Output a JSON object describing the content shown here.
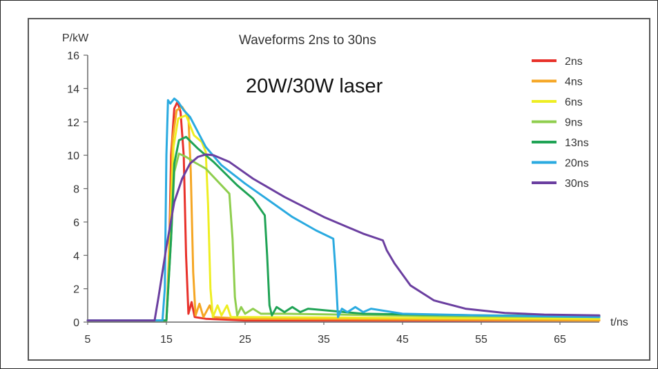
{
  "chart_data": {
    "type": "line",
    "title": "Waveforms 2ns to 30ns",
    "subtitle": "20W/30W laser",
    "xlabel": "t/ns",
    "ylabel": "P/kW",
    "xlim": [
      5,
      70
    ],
    "ylim": [
      0,
      16
    ],
    "x_ticks": [
      5,
      15,
      25,
      35,
      45,
      55,
      65
    ],
    "y_ticks": [
      0,
      2,
      4,
      6,
      8,
      10,
      12,
      14,
      16
    ],
    "grid": false,
    "legend_position": "top-right",
    "series": [
      {
        "name": "2ns",
        "color": "#e8312a",
        "points": [
          [
            5,
            0.1
          ],
          [
            15,
            0.1
          ],
          [
            15.3,
            3
          ],
          [
            15.6,
            10
          ],
          [
            16,
            12.8
          ],
          [
            16.4,
            13.2
          ],
          [
            16.8,
            12.6
          ],
          [
            17.2,
            10
          ],
          [
            17.5,
            4
          ],
          [
            17.8,
            0.5
          ],
          [
            18.2,
            1.2
          ],
          [
            18.6,
            0.3
          ],
          [
            20,
            0.2
          ],
          [
            25,
            0.1
          ],
          [
            70,
            0.1
          ]
        ]
      },
      {
        "name": "4ns",
        "color": "#f5a623",
        "points": [
          [
            5,
            0.1
          ],
          [
            15,
            0.1
          ],
          [
            15.4,
            5
          ],
          [
            15.8,
            11
          ],
          [
            16.3,
            12.7
          ],
          [
            17,
            12.9
          ],
          [
            17.8,
            12.3
          ],
          [
            18.1,
            9
          ],
          [
            18.4,
            3
          ],
          [
            18.7,
            0.4
          ],
          [
            19.2,
            1.1
          ],
          [
            19.7,
            0.3
          ],
          [
            20.5,
            1.0
          ],
          [
            21,
            0.3
          ],
          [
            25,
            0.2
          ],
          [
            70,
            0.1
          ]
        ]
      },
      {
        "name": "6ns",
        "color": "#eeee22",
        "points": [
          [
            5,
            0.1
          ],
          [
            15,
            0.1
          ],
          [
            15.5,
            5
          ],
          [
            15.9,
            10.5
          ],
          [
            16.5,
            12.2
          ],
          [
            17.5,
            12.4
          ],
          [
            18.5,
            11.2
          ],
          [
            19.5,
            10.8
          ],
          [
            20,
            10.2
          ],
          [
            20.3,
            7
          ],
          [
            20.6,
            2
          ],
          [
            20.9,
            0.3
          ],
          [
            21.5,
            1.0
          ],
          [
            22,
            0.4
          ],
          [
            22.7,
            1.0
          ],
          [
            23.2,
            0.3
          ],
          [
            25,
            0.3
          ],
          [
            70,
            0.2
          ]
        ]
      },
      {
        "name": "9ns",
        "color": "#8fce4e",
        "points": [
          [
            5,
            0.1
          ],
          [
            15,
            0.1
          ],
          [
            15.6,
            5
          ],
          [
            16,
            9
          ],
          [
            16.6,
            10.1
          ],
          [
            17.5,
            9.9
          ],
          [
            18.5,
            9.6
          ],
          [
            20,
            9.2
          ],
          [
            22,
            8.2
          ],
          [
            23,
            7.7
          ],
          [
            23.4,
            5
          ],
          [
            23.7,
            1.5
          ],
          [
            24,
            0.4
          ],
          [
            24.5,
            0.9
          ],
          [
            25,
            0.5
          ],
          [
            26,
            0.8
          ],
          [
            27,
            0.5
          ],
          [
            30,
            0.5
          ],
          [
            50,
            0.35
          ],
          [
            70,
            0.3
          ]
        ]
      },
      {
        "name": "13ns",
        "color": "#1fa355",
        "points": [
          [
            5,
            0.1
          ],
          [
            15,
            0.1
          ],
          [
            15.6,
            5
          ],
          [
            16,
            9.5
          ],
          [
            16.6,
            10.9
          ],
          [
            17.5,
            11.1
          ],
          [
            19,
            10.4
          ],
          [
            21,
            9.6
          ],
          [
            24,
            8.2
          ],
          [
            26,
            7.4
          ],
          [
            27.5,
            6.4
          ],
          [
            27.8,
            4
          ],
          [
            28.1,
            1
          ],
          [
            28.4,
            0.4
          ],
          [
            29,
            0.9
          ],
          [
            30,
            0.6
          ],
          [
            31,
            0.9
          ],
          [
            32,
            0.6
          ],
          [
            33,
            0.8
          ],
          [
            40,
            0.5
          ],
          [
            55,
            0.4
          ],
          [
            70,
            0.35
          ]
        ]
      },
      {
        "name": "20ns",
        "color": "#2aaae0",
        "points": [
          [
            5,
            0.1
          ],
          [
            14.5,
            0.1
          ],
          [
            14.8,
            2
          ],
          [
            15,
            10
          ],
          [
            15.2,
            13.3
          ],
          [
            15.5,
            13.1
          ],
          [
            16,
            13.4
          ],
          [
            16.5,
            13.2
          ],
          [
            17.2,
            12.7
          ],
          [
            18,
            12.3
          ],
          [
            19,
            11.4
          ],
          [
            20,
            10.5
          ],
          [
            22,
            9.4
          ],
          [
            25,
            8.3
          ],
          [
            28,
            7.3
          ],
          [
            31,
            6.3
          ],
          [
            34,
            5.5
          ],
          [
            36.2,
            5.0
          ],
          [
            36.5,
            3
          ],
          [
            36.8,
            0.3
          ],
          [
            37.3,
            0.8
          ],
          [
            38,
            0.6
          ],
          [
            39,
            0.9
          ],
          [
            40,
            0.6
          ],
          [
            41,
            0.8
          ],
          [
            45,
            0.5
          ],
          [
            55,
            0.4
          ],
          [
            70,
            0.3
          ]
        ]
      },
      {
        "name": "30ns",
        "color": "#6b3fa0",
        "points": [
          [
            5,
            0.1
          ],
          [
            13.5,
            0.1
          ],
          [
            14,
            1.5
          ],
          [
            15,
            4.5
          ],
          [
            16,
            7.2
          ],
          [
            17,
            8.6
          ],
          [
            18,
            9.5
          ],
          [
            19,
            9.9
          ],
          [
            20,
            10.05
          ],
          [
            21,
            10.0
          ],
          [
            23,
            9.6
          ],
          [
            26,
            8.6
          ],
          [
            30,
            7.5
          ],
          [
            35,
            6.3
          ],
          [
            40,
            5.3
          ],
          [
            42.5,
            4.9
          ],
          [
            43,
            4.3
          ],
          [
            44,
            3.5
          ],
          [
            46,
            2.2
          ],
          [
            49,
            1.3
          ],
          [
            53,
            0.8
          ],
          [
            58,
            0.55
          ],
          [
            63,
            0.45
          ],
          [
            70,
            0.4
          ]
        ]
      }
    ]
  }
}
